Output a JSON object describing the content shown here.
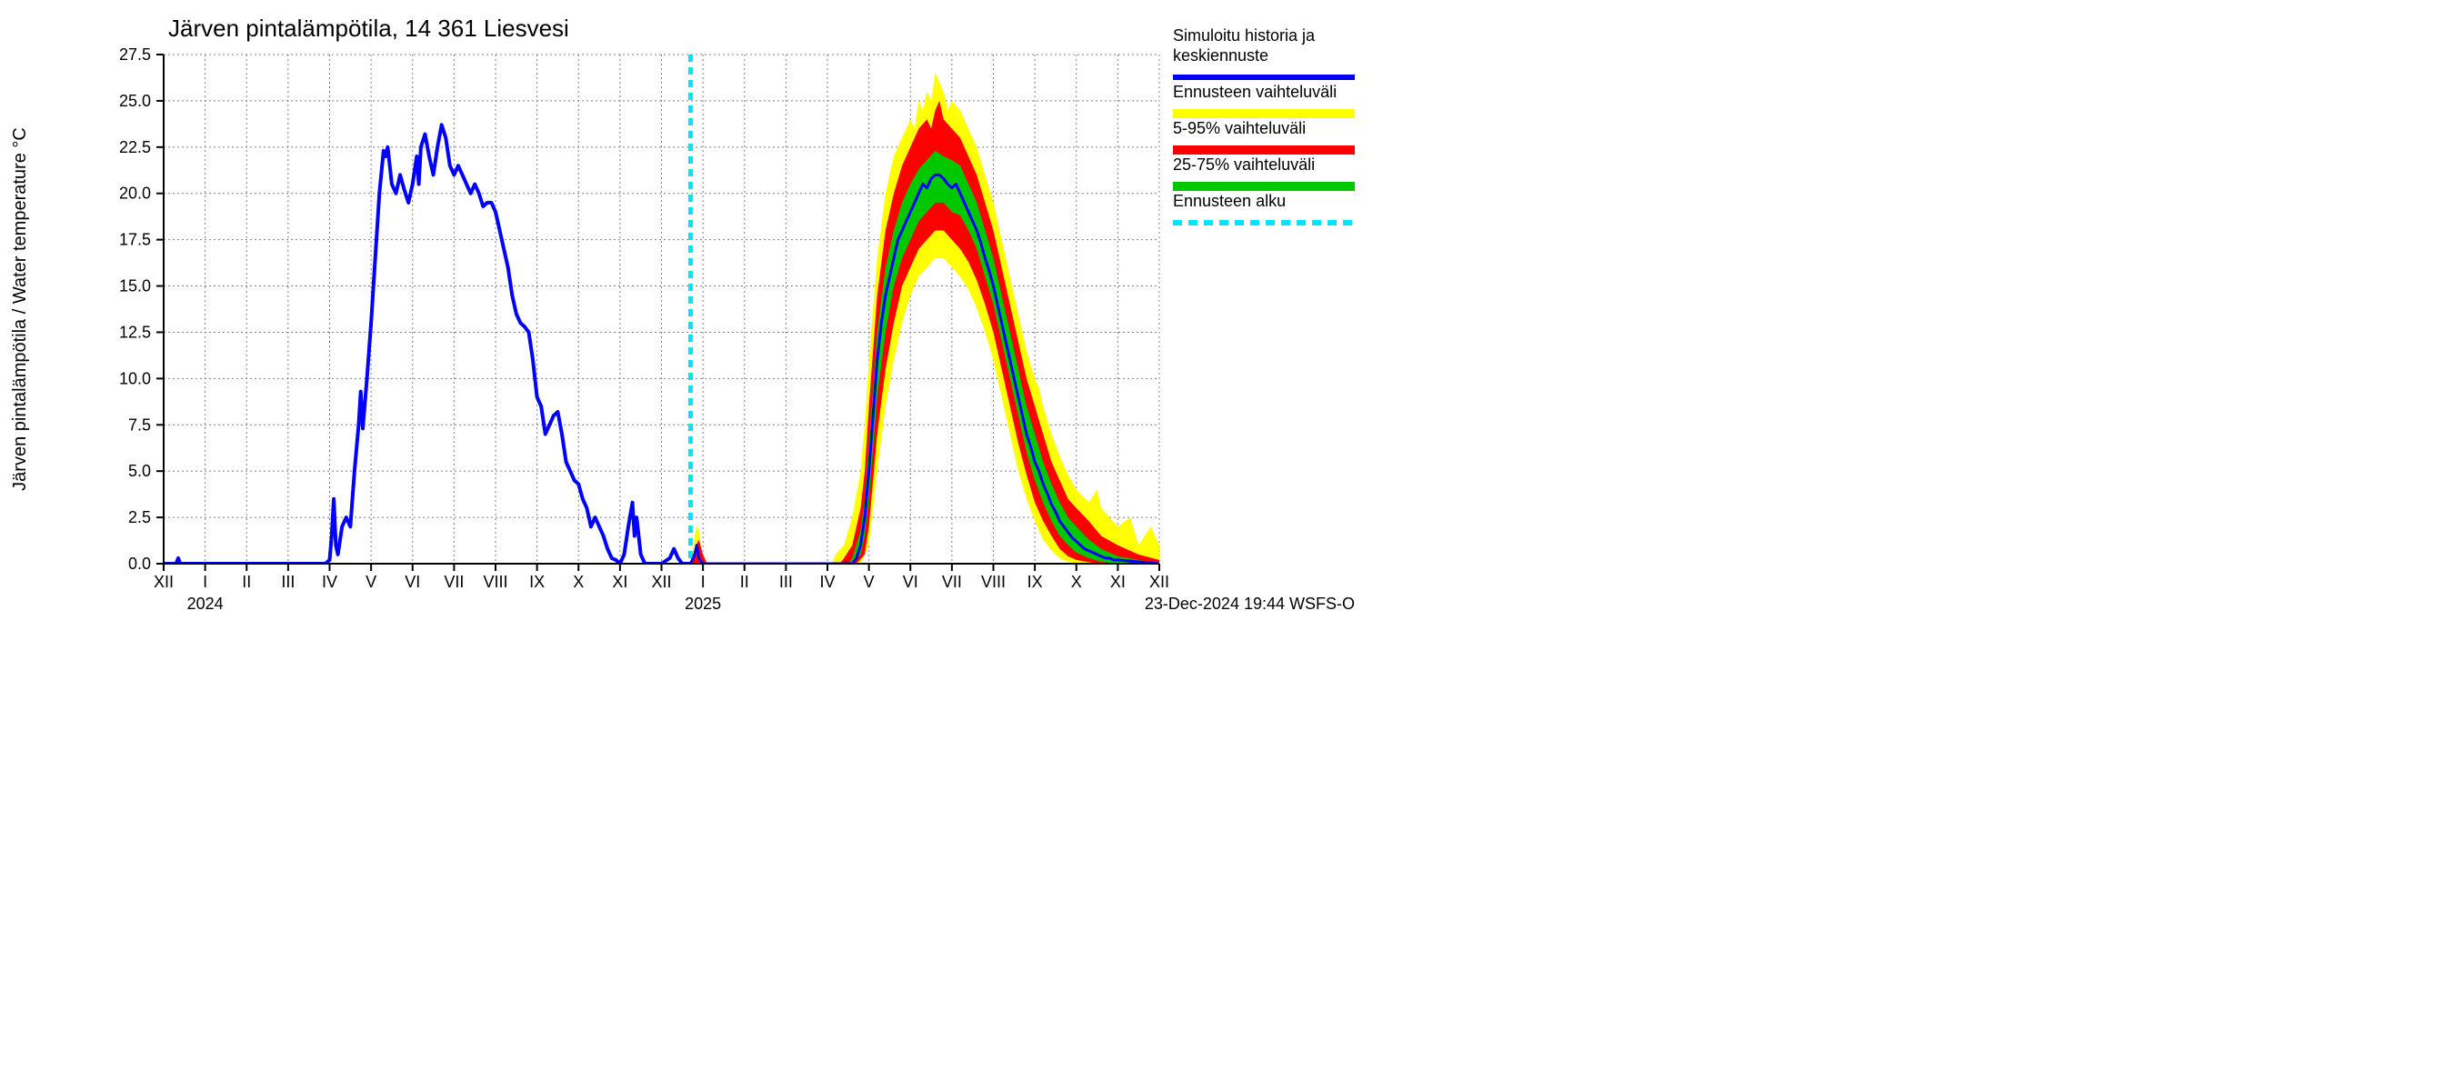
{
  "chart": {
    "type": "line-band",
    "title": "Järven pintalämpötila, 14 361 Liesvesi",
    "ylabel": "Järven pintalämpötila / Water temperature °C",
    "footer": "23-Dec-2024 19:44 WSFS-O",
    "background_color": "#ffffff",
    "grid_color": "#808080",
    "grid_dash": "2,3",
    "axis_fontsize": 20,
    "tick_fontsize": 18,
    "title_fontsize": 26,
    "legend_fontsize": 18,
    "ylim": [
      0.0,
      27.5
    ],
    "ytick_step": 2.5,
    "ytick_labels": [
      "0.0",
      "2.5",
      "5.0",
      "7.5",
      "10.0",
      "12.5",
      "15.0",
      "17.5",
      "20.0",
      "22.5",
      "25.0",
      "27.5"
    ],
    "x_months": [
      "XII",
      "I",
      "II",
      "III",
      "IV",
      "V",
      "VI",
      "VII",
      "VIII",
      "IX",
      "X",
      "XI",
      "XII",
      "I",
      "II",
      "III",
      "IV",
      "V",
      "VI",
      "VII",
      "VIII",
      "IX",
      "X",
      "XI",
      "XII"
    ],
    "x_year_labels": [
      {
        "text": "2024",
        "at_index": 1
      },
      {
        "text": "2025",
        "at_index": 13
      }
    ],
    "forecast_start_index": 12.7,
    "colors": {
      "history_line": "#0000ff",
      "forecast_line": "#0000ff",
      "band_full": "#ffff00",
      "band_5_95": "#ff0000",
      "band_25_75": "#00c800",
      "forecast_marker": "#00e5ff"
    },
    "line_width_history": 4,
    "line_width_forecast": 3,
    "forecast_marker_dash": "8,6",
    "forecast_marker_width": 5,
    "legend": [
      {
        "label_lines": [
          "Simuloitu historia ja",
          "keskiennuste"
        ],
        "swatch": "line",
        "color": "#0000ff"
      },
      {
        "label_lines": [
          "Ennusteen vaihteluväli"
        ],
        "swatch": "band",
        "color": "#ffff00"
      },
      {
        "label_lines": [
          "5-95% vaihteluväli"
        ],
        "swatch": "band",
        "color": "#ff0000"
      },
      {
        "label_lines": [
          "25-75% vaihteluväli"
        ],
        "swatch": "band",
        "color": "#00c800"
      },
      {
        "label_lines": [
          "Ennusteen alku"
        ],
        "swatch": "dashed",
        "color": "#00e5ff"
      }
    ],
    "history_series": [
      [
        0.0,
        0
      ],
      [
        0.3,
        0
      ],
      [
        0.35,
        0.3
      ],
      [
        0.4,
        0
      ],
      [
        1.0,
        0
      ],
      [
        2.0,
        0
      ],
      [
        3.0,
        0
      ],
      [
        3.9,
        0
      ],
      [
        4.0,
        0.2
      ],
      [
        4.05,
        1.5
      ],
      [
        4.1,
        3.5
      ],
      [
        4.15,
        1.0
      ],
      [
        4.2,
        0.5
      ],
      [
        4.3,
        2.0
      ],
      [
        4.4,
        2.5
      ],
      [
        4.5,
        2.0
      ],
      [
        4.6,
        5.0
      ],
      [
        4.7,
        7.5
      ],
      [
        4.75,
        9.3
      ],
      [
        4.8,
        7.3
      ],
      [
        4.9,
        10.0
      ],
      [
        5.0,
        13.0
      ],
      [
        5.1,
        16.5
      ],
      [
        5.2,
        20.0
      ],
      [
        5.3,
        22.3
      ],
      [
        5.35,
        22.0
      ],
      [
        5.4,
        22.5
      ],
      [
        5.5,
        20.5
      ],
      [
        5.6,
        20.0
      ],
      [
        5.7,
        21.0
      ],
      [
        5.8,
        20.2
      ],
      [
        5.9,
        19.5
      ],
      [
        6.0,
        20.5
      ],
      [
        6.1,
        22.0
      ],
      [
        6.15,
        20.5
      ],
      [
        6.2,
        22.5
      ],
      [
        6.3,
        23.2
      ],
      [
        6.4,
        22.0
      ],
      [
        6.5,
        21.0
      ],
      [
        6.6,
        22.5
      ],
      [
        6.7,
        23.7
      ],
      [
        6.8,
        23.0
      ],
      [
        6.9,
        21.5
      ],
      [
        7.0,
        21.0
      ],
      [
        7.1,
        21.5
      ],
      [
        7.2,
        21.0
      ],
      [
        7.3,
        20.5
      ],
      [
        7.4,
        20.0
      ],
      [
        7.5,
        20.5
      ],
      [
        7.6,
        20.0
      ],
      [
        7.7,
        19.3
      ],
      [
        7.8,
        19.5
      ],
      [
        7.9,
        19.5
      ],
      [
        8.0,
        19.0
      ],
      [
        8.1,
        18.0
      ],
      [
        8.2,
        17.0
      ],
      [
        8.3,
        16.0
      ],
      [
        8.4,
        14.5
      ],
      [
        8.5,
        13.5
      ],
      [
        8.6,
        13.0
      ],
      [
        8.7,
        12.8
      ],
      [
        8.8,
        12.5
      ],
      [
        8.9,
        11.0
      ],
      [
        9.0,
        9.0
      ],
      [
        9.1,
        8.5
      ],
      [
        9.2,
        7.0
      ],
      [
        9.3,
        7.5
      ],
      [
        9.4,
        8.0
      ],
      [
        9.5,
        8.2
      ],
      [
        9.6,
        7.0
      ],
      [
        9.7,
        5.5
      ],
      [
        9.8,
        5.0
      ],
      [
        9.9,
        4.5
      ],
      [
        10.0,
        4.3
      ],
      [
        10.1,
        3.5
      ],
      [
        10.2,
        3.0
      ],
      [
        10.3,
        2.0
      ],
      [
        10.4,
        2.5
      ],
      [
        10.5,
        2.0
      ],
      [
        10.6,
        1.5
      ],
      [
        10.7,
        0.8
      ],
      [
        10.8,
        0.3
      ],
      [
        10.9,
        0.2
      ],
      [
        11.0,
        0
      ],
      [
        11.1,
        0.5
      ],
      [
        11.2,
        2.0
      ],
      [
        11.3,
        3.3
      ],
      [
        11.35,
        1.5
      ],
      [
        11.4,
        2.5
      ],
      [
        11.5,
        0.5
      ],
      [
        11.6,
        0
      ],
      [
        11.7,
        0
      ],
      [
        12.0,
        0
      ],
      [
        12.2,
        0.3
      ],
      [
        12.3,
        0.8
      ],
      [
        12.4,
        0.3
      ],
      [
        12.5,
        0
      ],
      [
        12.7,
        0
      ]
    ],
    "forecast_mean": [
      [
        12.7,
        0
      ],
      [
        12.8,
        0.5
      ],
      [
        12.85,
        1.0
      ],
      [
        12.9,
        0.3
      ],
      [
        13.0,
        0
      ],
      [
        14.0,
        0
      ],
      [
        15.0,
        0
      ],
      [
        15.9,
        0
      ],
      [
        16.0,
        0
      ],
      [
        16.5,
        0
      ],
      [
        16.6,
        0
      ],
      [
        16.7,
        0.3
      ],
      [
        16.8,
        1.0
      ],
      [
        16.9,
        2.5
      ],
      [
        17.0,
        5.0
      ],
      [
        17.1,
        8.0
      ],
      [
        17.2,
        11.0
      ],
      [
        17.3,
        13.0
      ],
      [
        17.4,
        14.5
      ],
      [
        17.5,
        15.5
      ],
      [
        17.6,
        16.5
      ],
      [
        17.7,
        17.5
      ],
      [
        17.8,
        18.0
      ],
      [
        17.9,
        18.5
      ],
      [
        18.0,
        19.0
      ],
      [
        18.1,
        19.5
      ],
      [
        18.2,
        20.0
      ],
      [
        18.3,
        20.5
      ],
      [
        18.4,
        20.3
      ],
      [
        18.5,
        20.8
      ],
      [
        18.6,
        21.0
      ],
      [
        18.7,
        21.0
      ],
      [
        18.8,
        20.8
      ],
      [
        18.9,
        20.5
      ],
      [
        19.0,
        20.3
      ],
      [
        19.1,
        20.5
      ],
      [
        19.2,
        20.0
      ],
      [
        19.3,
        19.5
      ],
      [
        19.4,
        19.0
      ],
      [
        19.5,
        18.5
      ],
      [
        19.6,
        18.0
      ],
      [
        19.7,
        17.3
      ],
      [
        19.8,
        16.5
      ],
      [
        19.9,
        15.8
      ],
      [
        20.0,
        15.0
      ],
      [
        20.1,
        14.0
      ],
      [
        20.2,
        13.0
      ],
      [
        20.3,
        12.0
      ],
      [
        20.4,
        11.0
      ],
      [
        20.5,
        10.0
      ],
      [
        20.6,
        9.0
      ],
      [
        20.7,
        8.0
      ],
      [
        20.8,
        7.0
      ],
      [
        20.9,
        6.3
      ],
      [
        21.0,
        5.5
      ],
      [
        21.1,
        5.0
      ],
      [
        21.2,
        4.3
      ],
      [
        21.3,
        3.8
      ],
      [
        21.4,
        3.2
      ],
      [
        21.5,
        2.8
      ],
      [
        21.6,
        2.3
      ],
      [
        21.7,
        2.0
      ],
      [
        21.8,
        1.7
      ],
      [
        21.9,
        1.4
      ],
      [
        22.0,
        1.2
      ],
      [
        22.1,
        1.0
      ],
      [
        22.2,
        0.8
      ],
      [
        22.3,
        0.7
      ],
      [
        22.4,
        0.6
      ],
      [
        22.5,
        0.5
      ],
      [
        22.6,
        0.4
      ],
      [
        22.7,
        0.3
      ],
      [
        22.8,
        0.3
      ],
      [
        22.9,
        0.2
      ],
      [
        23.0,
        0.2
      ],
      [
        23.5,
        0.1
      ],
      [
        24.0,
        0
      ]
    ],
    "band_25_75_lo": [
      [
        12.7,
        0
      ],
      [
        13.0,
        0
      ],
      [
        16.6,
        0
      ],
      [
        16.8,
        0.5
      ],
      [
        16.9,
        1.5
      ],
      [
        17.0,
        3.5
      ],
      [
        17.2,
        9.0
      ],
      [
        17.4,
        12.5
      ],
      [
        17.6,
        15.0
      ],
      [
        17.8,
        16.5
      ],
      [
        18.0,
        17.5
      ],
      [
        18.2,
        18.5
      ],
      [
        18.4,
        19.0
      ],
      [
        18.6,
        19.5
      ],
      [
        18.8,
        19.5
      ],
      [
        19.0,
        19.0
      ],
      [
        19.2,
        18.8
      ],
      [
        19.4,
        18.0
      ],
      [
        19.6,
        17.0
      ],
      [
        19.8,
        15.5
      ],
      [
        20.0,
        14.0
      ],
      [
        20.2,
        12.0
      ],
      [
        20.4,
        10.0
      ],
      [
        20.6,
        8.0
      ],
      [
        20.8,
        6.0
      ],
      [
        21.0,
        4.5
      ],
      [
        21.2,
        3.3
      ],
      [
        21.4,
        2.3
      ],
      [
        21.6,
        1.5
      ],
      [
        21.8,
        1.0
      ],
      [
        22.0,
        0.6
      ],
      [
        22.3,
        0.3
      ],
      [
        22.6,
        0.1
      ],
      [
        23.0,
        0
      ],
      [
        24.0,
        0
      ]
    ],
    "band_25_75_hi": [
      [
        12.7,
        0
      ],
      [
        13.0,
        0
      ],
      [
        16.5,
        0
      ],
      [
        16.6,
        0.3
      ],
      [
        16.8,
        1.8
      ],
      [
        16.9,
        3.5
      ],
      [
        17.0,
        6.5
      ],
      [
        17.2,
        12.5
      ],
      [
        17.4,
        16.0
      ],
      [
        17.6,
        18.0
      ],
      [
        17.8,
        19.5
      ],
      [
        18.0,
        20.5
      ],
      [
        18.2,
        21.3
      ],
      [
        18.4,
        21.8
      ],
      [
        18.6,
        22.3
      ],
      [
        18.8,
        22.0
      ],
      [
        19.0,
        21.8
      ],
      [
        19.2,
        21.5
      ],
      [
        19.4,
        20.5
      ],
      [
        19.6,
        19.5
      ],
      [
        19.8,
        18.0
      ],
      [
        20.0,
        16.5
      ],
      [
        20.2,
        14.5
      ],
      [
        20.4,
        12.5
      ],
      [
        20.6,
        10.5
      ],
      [
        20.8,
        8.5
      ],
      [
        21.0,
        7.0
      ],
      [
        21.2,
        5.5
      ],
      [
        21.4,
        4.3
      ],
      [
        21.6,
        3.3
      ],
      [
        21.8,
        2.5
      ],
      [
        22.0,
        2.0
      ],
      [
        22.3,
        1.3
      ],
      [
        22.6,
        0.8
      ],
      [
        23.0,
        0.4
      ],
      [
        23.5,
        0.2
      ],
      [
        24.0,
        0
      ]
    ],
    "band_5_95_lo": [
      [
        12.7,
        0
      ],
      [
        13.0,
        0
      ],
      [
        16.7,
        0
      ],
      [
        16.9,
        0.5
      ],
      [
        17.0,
        2.0
      ],
      [
        17.2,
        7.0
      ],
      [
        17.4,
        10.5
      ],
      [
        17.6,
        13.0
      ],
      [
        17.8,
        15.0
      ],
      [
        18.0,
        16.0
      ],
      [
        18.2,
        17.0
      ],
      [
        18.4,
        17.5
      ],
      [
        18.6,
        18.0
      ],
      [
        18.8,
        18.0
      ],
      [
        19.0,
        17.5
      ],
      [
        19.2,
        17.0
      ],
      [
        19.4,
        16.3
      ],
      [
        19.6,
        15.3
      ],
      [
        19.8,
        14.0
      ],
      [
        20.0,
        12.5
      ],
      [
        20.2,
        10.5
      ],
      [
        20.4,
        8.5
      ],
      [
        20.6,
        6.5
      ],
      [
        20.8,
        4.8
      ],
      [
        21.0,
        3.3
      ],
      [
        21.2,
        2.3
      ],
      [
        21.4,
        1.5
      ],
      [
        21.6,
        0.8
      ],
      [
        21.8,
        0.4
      ],
      [
        22.0,
        0.2
      ],
      [
        22.5,
        0
      ],
      [
        24.0,
        0
      ]
    ],
    "band_5_95_hi": [
      [
        12.7,
        0
      ],
      [
        12.8,
        0.8
      ],
      [
        12.9,
        1.3
      ],
      [
        13.0,
        0.5
      ],
      [
        13.1,
        0
      ],
      [
        16.3,
        0
      ],
      [
        16.4,
        0.3
      ],
      [
        16.6,
        1.0
      ],
      [
        16.8,
        3.0
      ],
      [
        16.9,
        5.0
      ],
      [
        17.0,
        8.5
      ],
      [
        17.2,
        14.5
      ],
      [
        17.4,
        18.0
      ],
      [
        17.6,
        20.0
      ],
      [
        17.8,
        21.5
      ],
      [
        18.0,
        22.5
      ],
      [
        18.2,
        23.5
      ],
      [
        18.4,
        24.0
      ],
      [
        18.5,
        23.5
      ],
      [
        18.6,
        24.5
      ],
      [
        18.7,
        25.0
      ],
      [
        18.8,
        24.0
      ],
      [
        19.0,
        23.5
      ],
      [
        19.2,
        23.0
      ],
      [
        19.4,
        22.0
      ],
      [
        19.6,
        21.0
      ],
      [
        19.8,
        19.5
      ],
      [
        20.0,
        18.0
      ],
      [
        20.2,
        16.0
      ],
      [
        20.4,
        14.0
      ],
      [
        20.6,
        12.0
      ],
      [
        20.8,
        10.0
      ],
      [
        21.0,
        8.5
      ],
      [
        21.2,
        7.0
      ],
      [
        21.4,
        5.5
      ],
      [
        21.6,
        4.5
      ],
      [
        21.8,
        3.5
      ],
      [
        22.0,
        3.0
      ],
      [
        22.3,
        2.3
      ],
      [
        22.6,
        1.5
      ],
      [
        23.0,
        1.0
      ],
      [
        23.5,
        0.5
      ],
      [
        24.0,
        0.2
      ]
    ],
    "band_full_lo": [
      [
        12.7,
        0
      ],
      [
        13.0,
        0
      ],
      [
        16.8,
        0
      ],
      [
        17.0,
        1.0
      ],
      [
        17.2,
        5.0
      ],
      [
        17.4,
        8.5
      ],
      [
        17.6,
        11.0
      ],
      [
        17.8,
        13.0
      ],
      [
        18.0,
        14.5
      ],
      [
        18.2,
        15.5
      ],
      [
        18.4,
        16.0
      ],
      [
        18.6,
        16.5
      ],
      [
        18.8,
        16.5
      ],
      [
        19.0,
        16.0
      ],
      [
        19.2,
        15.5
      ],
      [
        19.4,
        14.8
      ],
      [
        19.6,
        13.8
      ],
      [
        19.8,
        12.5
      ],
      [
        20.0,
        11.0
      ],
      [
        20.2,
        9.0
      ],
      [
        20.4,
        7.0
      ],
      [
        20.6,
        5.0
      ],
      [
        20.8,
        3.5
      ],
      [
        21.0,
        2.3
      ],
      [
        21.2,
        1.3
      ],
      [
        21.4,
        0.7
      ],
      [
        21.6,
        0.3
      ],
      [
        21.8,
        0.1
      ],
      [
        22.0,
        0
      ],
      [
        24.0,
        0
      ]
    ],
    "band_full_hi": [
      [
        12.7,
        0
      ],
      [
        12.75,
        0.5
      ],
      [
        12.8,
        1.5
      ],
      [
        12.85,
        2.0
      ],
      [
        12.9,
        1.8
      ],
      [
        12.95,
        1.0
      ],
      [
        13.0,
        0.3
      ],
      [
        13.1,
        0
      ],
      [
        16.1,
        0
      ],
      [
        16.2,
        0.5
      ],
      [
        16.4,
        1.0
      ],
      [
        16.6,
        2.5
      ],
      [
        16.8,
        5.0
      ],
      [
        16.9,
        7.5
      ],
      [
        17.0,
        11.0
      ],
      [
        17.2,
        16.5
      ],
      [
        17.4,
        20.0
      ],
      [
        17.6,
        22.0
      ],
      [
        17.8,
        23.0
      ],
      [
        18.0,
        24.0
      ],
      [
        18.1,
        23.5
      ],
      [
        18.2,
        25.0
      ],
      [
        18.3,
        24.5
      ],
      [
        18.4,
        25.5
      ],
      [
        18.5,
        25.0
      ],
      [
        18.6,
        26.5
      ],
      [
        18.7,
        26.0
      ],
      [
        18.8,
        25.5
      ],
      [
        18.9,
        24.5
      ],
      [
        19.0,
        25.0
      ],
      [
        19.2,
        24.5
      ],
      [
        19.4,
        23.5
      ],
      [
        19.6,
        22.5
      ],
      [
        19.8,
        21.0
      ],
      [
        20.0,
        19.5
      ],
      [
        20.2,
        17.5
      ],
      [
        20.4,
        15.5
      ],
      [
        20.6,
        13.5
      ],
      [
        20.8,
        11.5
      ],
      [
        21.0,
        10.0
      ],
      [
        21.1,
        9.5
      ],
      [
        21.2,
        8.5
      ],
      [
        21.4,
        7.0
      ],
      [
        21.6,
        5.8
      ],
      [
        21.8,
        4.8
      ],
      [
        22.0,
        4.0
      ],
      [
        22.3,
        3.3
      ],
      [
        22.5,
        4.0
      ],
      [
        22.6,
        3.0
      ],
      [
        23.0,
        2.0
      ],
      [
        23.3,
        2.5
      ],
      [
        23.5,
        1.0
      ],
      [
        23.8,
        2.0
      ],
      [
        24.0,
        1.0
      ]
    ]
  }
}
